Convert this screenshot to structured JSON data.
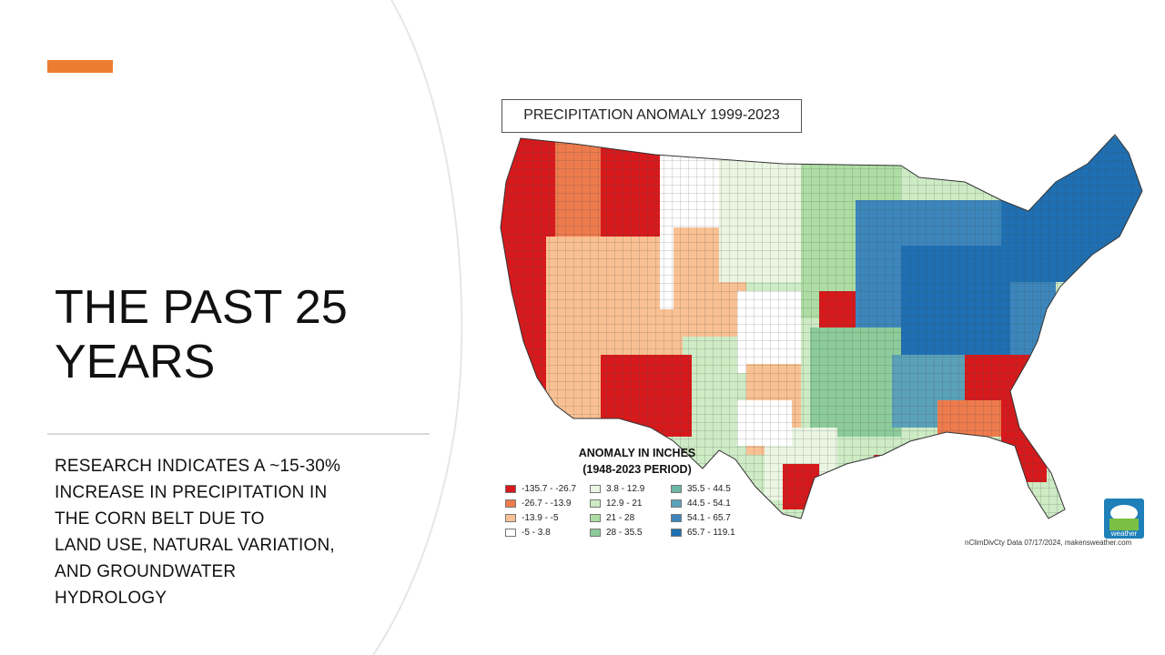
{
  "slide": {
    "title": "THE PAST 25 YEARS",
    "subtitle_lines": [
      "RESEARCH INDICATES A ~15-30%",
      "INCREASE IN PRECIPITATION IN",
      "THE CORN BELT DUE TO",
      "LAND USE, NATURAL VARIATION,",
      "AND GROUNDWATER",
      "HYDROLOGY"
    ],
    "accent_color": "#ED7D31"
  },
  "map": {
    "title": "PRECIPITATION ANOMALY 1999-2023",
    "legend_title_line1": "ANOMALY IN INCHES",
    "legend_title_line2": "(1948-2023 PERIOD)",
    "legend": [
      {
        "label": "-135.7 - -26.7",
        "color": "#D7191C"
      },
      {
        "label": "-26.7 - -13.9",
        "color": "#EE7B4C"
      },
      {
        "label": "-13.9 - -5",
        "color": "#F9C193"
      },
      {
        "label": "-5 - 3.8",
        "color": "#FFFFFF"
      },
      {
        "label": "3.8 - 12.9",
        "color": "#EAF6E2"
      },
      {
        "label": "12.9 - 21",
        "color": "#CDEBC4"
      },
      {
        "label": "21 - 28",
        "color": "#AEDDA3"
      },
      {
        "label": "28 - 35.5",
        "color": "#8CCB9A"
      },
      {
        "label": "35.5 - 44.5",
        "color": "#6DB6A5"
      },
      {
        "label": "44.5 - 54.1",
        "color": "#5AA2B8"
      },
      {
        "label": "54.1 - 65.7",
        "color": "#3C86BC"
      },
      {
        "label": "65.7 - 119.1",
        "color": "#1F6FB2"
      }
    ],
    "credit": "nClimDivCty Data 07/17/2024, makensweather.com",
    "logo_text": "weather"
  }
}
